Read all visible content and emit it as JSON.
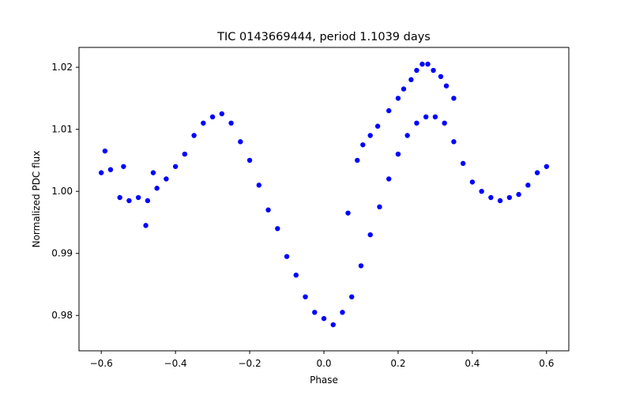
{
  "chart_data": {
    "type": "scatter",
    "title": "TIC 0143669444, period 1.1039 days",
    "xlabel": "Phase",
    "ylabel": "Normalized PDC flux",
    "xlim": [
      -0.66,
      0.66
    ],
    "ylim": [
      0.9743,
      1.0232
    ],
    "xticks": [
      -0.6,
      -0.4,
      -0.2,
      0.0,
      0.2,
      0.4,
      0.6
    ],
    "xtick_labels": [
      "−0.6",
      "−0.4",
      "−0.2",
      "0.0",
      "0.2",
      "0.4",
      "0.6"
    ],
    "yticks": [
      0.98,
      0.99,
      1.0,
      1.01,
      1.02
    ],
    "ytick_labels": [
      "0.98",
      "0.99",
      "1.00",
      "1.01",
      "1.02"
    ],
    "grid": false,
    "legend": "none",
    "marker_color": "#0000ff",
    "series": [
      {
        "points": [
          [
            -0.6,
            1.003
          ],
          [
            -0.575,
            1.0035
          ],
          [
            -0.55,
            0.999
          ],
          [
            -0.525,
            0.9985
          ],
          [
            -0.5,
            0.999
          ],
          [
            -0.475,
            0.9985
          ],
          [
            -0.45,
            1.0005
          ],
          [
            -0.425,
            1.002
          ],
          [
            -0.4,
            1.004
          ],
          [
            -0.375,
            1.006
          ],
          [
            -0.35,
            1.009
          ],
          [
            -0.325,
            1.011
          ],
          [
            -0.3,
            1.012
          ],
          [
            -0.275,
            1.0125
          ],
          [
            -0.25,
            1.011
          ],
          [
            -0.225,
            1.008
          ],
          [
            -0.2,
            1.005
          ],
          [
            -0.175,
            1.001
          ],
          [
            -0.15,
            0.997
          ],
          [
            -0.125,
            0.994
          ],
          [
            -0.1,
            0.9895
          ],
          [
            -0.075,
            0.9865
          ],
          [
            -0.05,
            0.983
          ],
          [
            -0.025,
            0.9805
          ],
          [
            0.0,
            0.9795
          ],
          [
            0.025,
            0.9785
          ],
          [
            0.05,
            0.9805
          ],
          [
            0.075,
            0.983
          ],
          [
            0.1,
            0.988
          ],
          [
            0.125,
            0.993
          ],
          [
            0.15,
            0.9975
          ],
          [
            0.175,
            1.002
          ],
          [
            0.2,
            1.006
          ],
          [
            0.225,
            1.009
          ],
          [
            0.25,
            1.011
          ],
          [
            0.275,
            1.012
          ],
          [
            0.3,
            1.012
          ],
          [
            0.325,
            1.011
          ],
          [
            0.35,
            1.008
          ],
          [
            0.375,
            1.0045
          ],
          [
            0.4,
            1.0015
          ],
          [
            0.425,
            1.0
          ],
          [
            0.45,
            0.999
          ],
          [
            0.475,
            0.9985
          ],
          [
            0.5,
            0.999
          ],
          [
            0.525,
            0.9995
          ],
          [
            0.55,
            1.001
          ],
          [
            0.575,
            1.003
          ],
          [
            0.6,
            1.004
          ],
          [
            0.065,
            0.9965
          ],
          [
            0.09,
            1.005
          ],
          [
            0.105,
            1.0075
          ],
          [
            0.125,
            1.009
          ],
          [
            0.145,
            1.0105
          ],
          [
            0.175,
            1.013
          ],
          [
            0.2,
            1.015
          ],
          [
            0.215,
            1.0165
          ],
          [
            0.235,
            1.018
          ],
          [
            0.25,
            1.0195
          ],
          [
            0.265,
            1.0205
          ],
          [
            0.28,
            1.0205
          ],
          [
            0.295,
            1.0195
          ],
          [
            0.315,
            1.0185
          ],
          [
            0.33,
            1.017
          ],
          [
            0.35,
            1.015
          ],
          [
            -0.59,
            1.0065
          ],
          [
            -0.54,
            1.004
          ],
          [
            -0.46,
            1.003
          ],
          [
            -0.48,
            0.9945
          ]
        ]
      }
    ]
  }
}
